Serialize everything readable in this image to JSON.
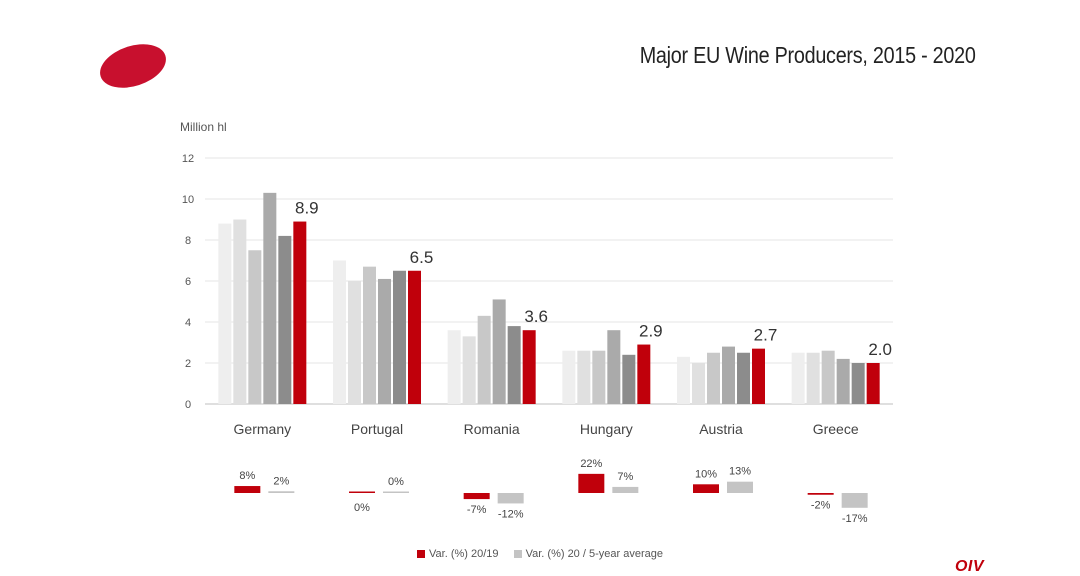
{
  "title": "Major EU Wine Producers, 2015 - 2020",
  "brand": "OIV",
  "colors": {
    "accent": "#c0000b",
    "years": [
      "#eeeeee",
      "#e0e0e0",
      "#c8c8c8",
      "#aaaaaa",
      "#8c8c8c",
      "#c0000b"
    ],
    "variation_grey": "#c4c4c4",
    "grid": "#e6e6e6",
    "axis": "#bfbfbf"
  },
  "chart_data": {
    "type": "bar",
    "ylabel": "Million hl",
    "ylim": [
      0,
      12
    ],
    "yticks": [
      0,
      2,
      4,
      6,
      8,
      10,
      12
    ],
    "grid": true,
    "categories": [
      "Germany",
      "Portugal",
      "Romania",
      "Hungary",
      "Austria",
      "Greece"
    ],
    "series": [
      {
        "values": [
          8.8,
          7.0,
          3.6,
          2.6,
          2.3,
          2.5
        ]
      },
      {
        "values": [
          9.0,
          6.0,
          3.3,
          2.6,
          2.0,
          2.5
        ]
      },
      {
        "values": [
          7.5,
          6.7,
          4.3,
          2.6,
          2.5,
          2.6
        ]
      },
      {
        "values": [
          10.3,
          6.1,
          5.1,
          3.6,
          2.8,
          2.2
        ]
      },
      {
        "values": [
          8.2,
          6.5,
          3.8,
          2.4,
          2.5,
          2.0
        ]
      },
      {
        "values": [
          8.9,
          6.5,
          3.6,
          2.9,
          2.7,
          2.0
        ]
      }
    ],
    "data_labels": [
      "8.9",
      "6.5",
      "3.6",
      "2.9",
      "2.7",
      "2.0"
    ],
    "variation": {
      "series": [
        {
          "name": "Var. (%) 20/19",
          "values": [
            8,
            0,
            -7,
            22,
            10,
            -2
          ],
          "labels": [
            "8%",
            "0%",
            "-7%",
            "22%",
            "10%",
            "-2%"
          ]
        },
        {
          "name": "Var. (%) 20 / 5-year average",
          "values": [
            2,
            0,
            -12,
            7,
            13,
            -17
          ],
          "labels": [
            "2%",
            "0%",
            "-12%",
            "7%",
            "13%",
            "-17%"
          ]
        }
      ]
    }
  }
}
